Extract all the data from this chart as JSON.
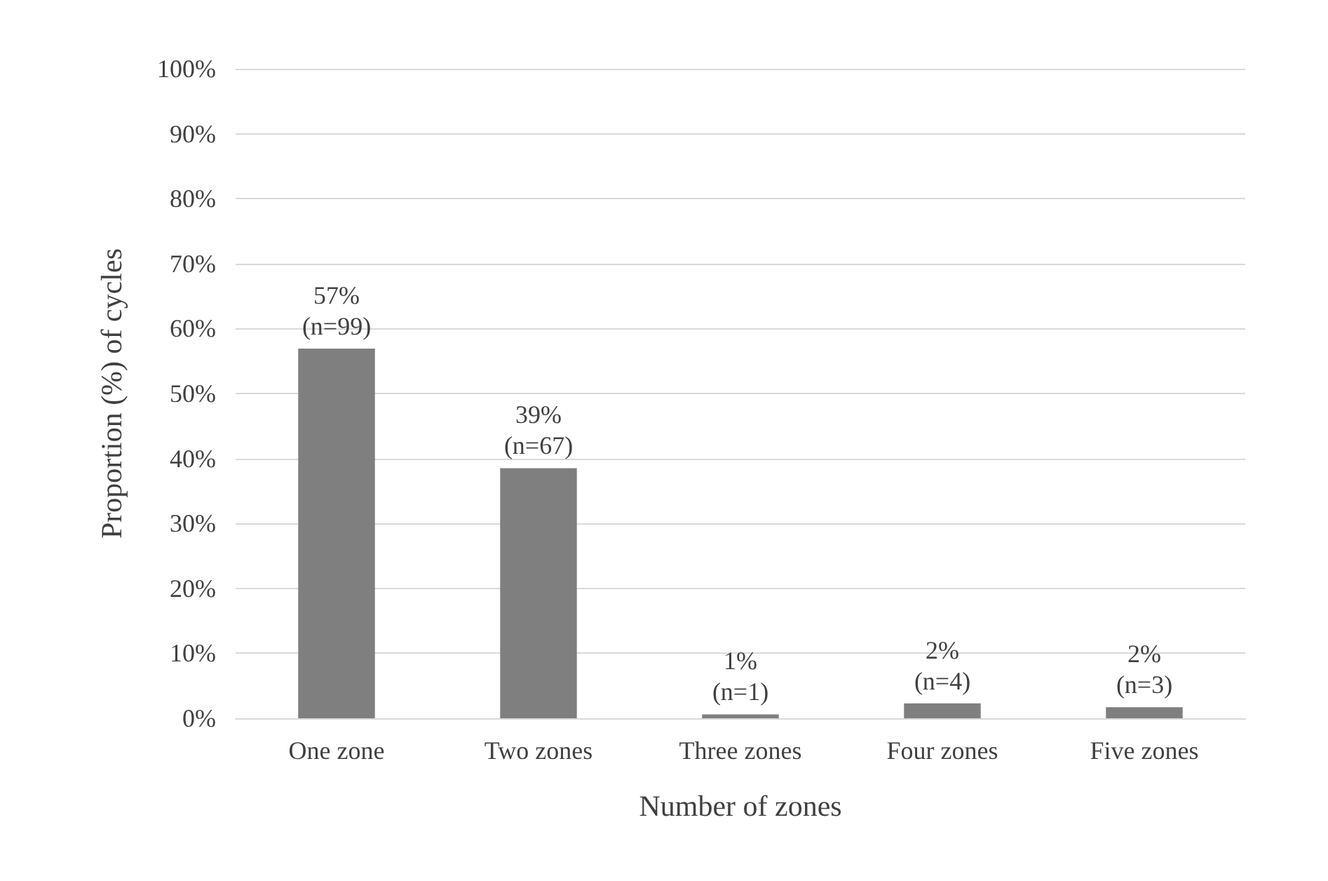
{
  "chart_data": {
    "type": "bar",
    "xlabel": "Number of zones",
    "ylabel": "Proportion (%) of cycles",
    "categories": [
      "One zone",
      "Two zones",
      "Three zones",
      "Four zones",
      "Five zones"
    ],
    "values": [
      56.9,
      38.5,
      0.6,
      2.3,
      1.7
    ],
    "color": "#7f7f7f",
    "value_labels": [
      "57%\n(n=99)",
      "39%\n(n=67)",
      "1%\n(n=1)",
      "2%\n(n=4)",
      "2%\n(n=3)"
    ],
    "ylim": [
      0,
      100
    ],
    "yticks": [
      {
        "value": 0,
        "label": "0%"
      },
      {
        "value": 10,
        "label": "10%"
      },
      {
        "value": 20,
        "label": "20%"
      },
      {
        "value": 30,
        "label": "30%"
      },
      {
        "value": 40,
        "label": "40%"
      },
      {
        "value": 50,
        "label": "50%"
      },
      {
        "value": 60,
        "label": "60%"
      },
      {
        "value": 70,
        "label": "70%"
      },
      {
        "value": 80,
        "label": "80%"
      },
      {
        "value": 90,
        "label": "90%"
      },
      {
        "value": 100,
        "label": "100%"
      }
    ],
    "grid": "y"
  }
}
